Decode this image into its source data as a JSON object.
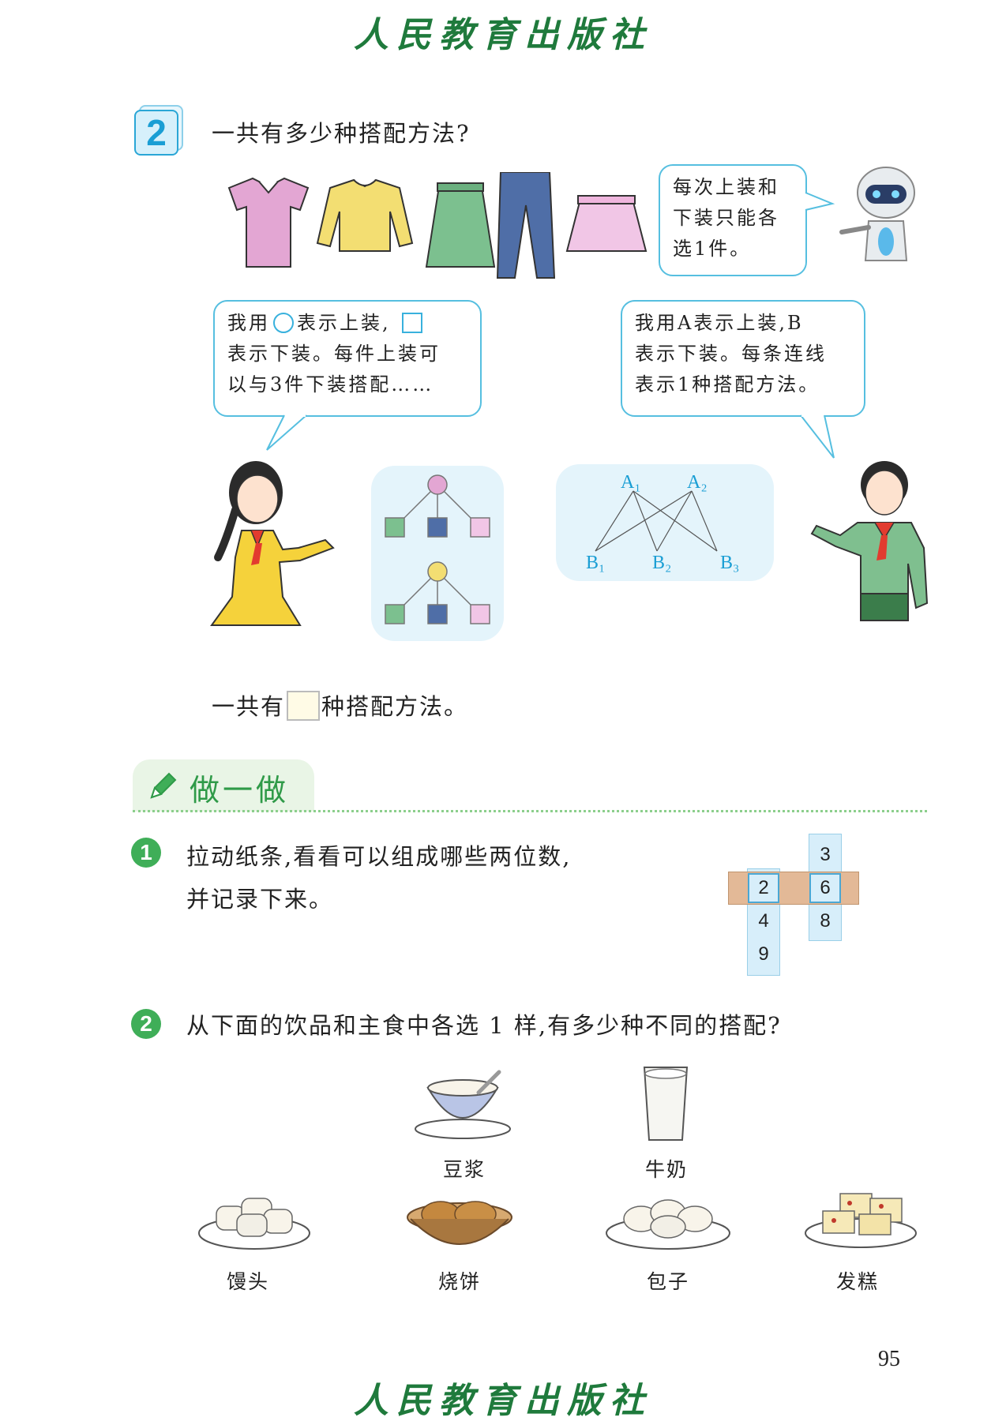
{
  "publisher": "人民教育出版社",
  "example": {
    "number": "2",
    "question": "一共有多少种搭配方法?",
    "robot_bubble": [
      "每次上装和",
      "下装只能各",
      "选1件。"
    ],
    "girl_bubble": {
      "line1_a": "我用",
      "line1_b": "表示上装,",
      "line2": "表示下装。每件上装可",
      "line3": "以与3件下装搭配……"
    },
    "boy_bubble": [
      "我用A表示上装,B",
      "表示下装。每条连线",
      "表示1种搭配方法。"
    ],
    "letter_diagram": {
      "top": [
        "A₁",
        "A₂"
      ],
      "bottom": [
        "B₁",
        "B₂",
        "B₃"
      ]
    },
    "answer_prefix": "一共有",
    "answer_suffix": "种搭配方法。"
  },
  "section": {
    "title": "做一做"
  },
  "exercise1": {
    "number": "1",
    "text_line1": "拉动纸条,看看可以组成哪些两位数,",
    "text_line2": "并记录下来。",
    "left_strip": [
      "2",
      "4",
      "9"
    ],
    "right_strip": [
      "3",
      "6",
      "8"
    ]
  },
  "exercise2": {
    "number": "2",
    "text": "从下面的饮品和主食中各选 1 样,有多少种不同的搭配?",
    "drinks": [
      "豆浆",
      "牛奶"
    ],
    "foods": [
      "馒头",
      "烧饼",
      "包子",
      "发糕"
    ]
  },
  "page_number": "95",
  "colors": {
    "accent_blue": "#1a9ed4",
    "accent_green": "#2f9a48",
    "publisher_green": "#1f7a3c"
  }
}
